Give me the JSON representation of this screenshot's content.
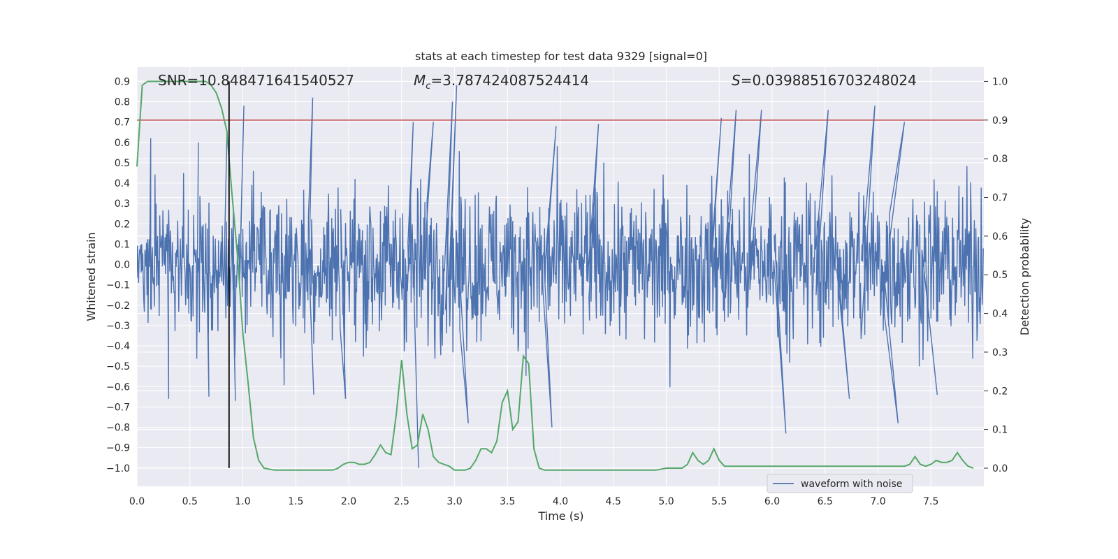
{
  "chart_data": {
    "type": "line",
    "title": "stats at each timestep for test data 9329 [signal=0]",
    "xlabel": "Time (s)",
    "ylabel": "Whitened strain",
    "y2label": "Detection probability",
    "xlim": [
      0.0,
      8.0
    ],
    "ylim": [
      -1.09,
      0.97
    ],
    "y2lim": [
      -0.047,
      1.037
    ],
    "xticks": [
      "0.0",
      "0.5",
      "1.0",
      "1.5",
      "2.0",
      "2.5",
      "3.0",
      "3.5",
      "4.0",
      "4.5",
      "5.0",
      "5.5",
      "6.0",
      "6.5",
      "7.0",
      "7.5"
    ],
    "yticks": [
      "0.9",
      "0.8",
      "0.7",
      "0.6",
      "0.5",
      "0.4",
      "0.3",
      "0.2",
      "0.1",
      "0.0",
      "−0.1",
      "−0.2",
      "−0.3",
      "−0.4",
      "−0.5",
      "−0.6",
      "−0.7",
      "−0.8",
      "−0.9",
      "−1.0"
    ],
    "y2ticks": [
      "1.0",
      "0.9",
      "0.8",
      "0.7",
      "0.6",
      "0.5",
      "0.4",
      "0.3",
      "0.2",
      "0.1",
      "0.0"
    ],
    "stats": {
      "snr_label": "SNR=10.848471641540527",
      "mc_symbol": "M",
      "mc_sub": "c",
      "mc_value": "=3.787424087524414",
      "s_symbol": "S",
      "s_value": "=0.03988516703248024"
    },
    "threshold": 0.9,
    "marker_time": 0.87,
    "legend": [
      "waveform with noise"
    ],
    "waveform_peaks": [
      {
        "t": 0.13,
        "v": 0.62
      },
      {
        "t": 0.58,
        "v": 0.6
      },
      {
        "t": 0.85,
        "v": 0.64
      },
      {
        "t": 1.01,
        "v": 0.78
      },
      {
        "t": 1.66,
        "v": 0.82
      },
      {
        "t": 2.61,
        "v": 0.7
      },
      {
        "t": 2.8,
        "v": 0.7
      },
      {
        "t": 2.98,
        "v": 0.8
      },
      {
        "t": 3.02,
        "v": 0.88
      },
      {
        "t": 3.96,
        "v": 0.68
      },
      {
        "t": 4.36,
        "v": 0.69
      },
      {
        "t": 5.52,
        "v": 0.72
      },
      {
        "t": 5.66,
        "v": 0.76
      },
      {
        "t": 5.9,
        "v": 0.76
      },
      {
        "t": 6.53,
        "v": 0.76
      },
      {
        "t": 6.97,
        "v": 0.78
      },
      {
        "t": 7.25,
        "v": 0.7
      },
      {
        "t": 0.3,
        "v": -0.66
      },
      {
        "t": 0.68,
        "v": -0.65
      },
      {
        "t": 0.93,
        "v": -0.67
      },
      {
        "t": 1.67,
        "v": -0.64
      },
      {
        "t": 1.97,
        "v": -0.66
      },
      {
        "t": 2.66,
        "v": -1.0
      },
      {
        "t": 3.13,
        "v": -0.78
      },
      {
        "t": 3.92,
        "v": -0.8
      },
      {
        "t": 6.13,
        "v": -0.83
      },
      {
        "t": 6.73,
        "v": -0.66
      },
      {
        "t": 7.19,
        "v": -0.78
      },
      {
        "t": 7.56,
        "v": -0.64
      }
    ],
    "detection_probability": {
      "x": [
        0.0,
        0.05,
        0.1,
        0.15,
        0.2,
        0.3,
        0.4,
        0.5,
        0.6,
        0.65,
        0.7,
        0.75,
        0.8,
        0.85,
        0.87,
        0.9,
        0.95,
        1.0,
        1.05,
        1.1,
        1.15,
        1.2,
        1.3,
        1.5,
        1.7,
        1.85,
        1.9,
        1.95,
        2.0,
        2.05,
        2.1,
        2.15,
        2.2,
        2.25,
        2.3,
        2.35,
        2.4,
        2.45,
        2.5,
        2.55,
        2.6,
        2.65,
        2.7,
        2.75,
        2.8,
        2.85,
        2.9,
        2.95,
        3.0,
        3.05,
        3.1,
        3.15,
        3.2,
        3.25,
        3.3,
        3.35,
        3.4,
        3.45,
        3.5,
        3.55,
        3.6,
        3.65,
        3.7,
        3.75,
        3.8,
        3.85,
        3.9,
        3.95,
        4.0,
        4.05,
        4.1,
        4.15,
        4.2,
        4.3,
        4.5,
        4.7,
        4.9,
        5.0,
        5.1,
        5.15,
        5.2,
        5.25,
        5.3,
        5.35,
        5.4,
        5.45,
        5.5,
        5.55,
        5.6,
        5.65,
        5.7,
        5.75,
        5.8,
        5.9,
        6.0,
        6.2,
        6.35,
        6.5,
        6.7,
        6.9,
        7.0,
        7.1,
        7.15,
        7.2,
        7.25,
        7.3,
        7.35,
        7.4,
        7.45,
        7.5,
        7.55,
        7.6,
        7.65,
        7.7,
        7.75,
        7.8,
        7.85,
        7.9
      ],
      "y": [
        0.78,
        0.99,
        1.0,
        1.0,
        1.0,
        1.0,
        1.0,
        1.0,
        1.0,
        1.0,
        0.99,
        0.97,
        0.93,
        0.87,
        0.8,
        0.7,
        0.55,
        0.35,
        0.22,
        0.08,
        0.02,
        0.0,
        -0.005,
        -0.005,
        -0.005,
        -0.005,
        0.0,
        0.01,
        0.015,
        0.015,
        0.01,
        0.01,
        0.015,
        0.035,
        0.06,
        0.04,
        0.035,
        0.14,
        0.28,
        0.14,
        0.05,
        0.06,
        0.14,
        0.1,
        0.03,
        0.015,
        0.01,
        0.005,
        -0.005,
        -0.005,
        -0.005,
        0.0,
        0.02,
        0.05,
        0.05,
        0.04,
        0.07,
        0.17,
        0.2,
        0.1,
        0.12,
        0.29,
        0.27,
        0.05,
        0.0,
        -0.005,
        -0.005,
        -0.005,
        -0.005,
        -0.005,
        -0.005,
        -0.005,
        -0.005,
        -0.005,
        -0.005,
        -0.005,
        -0.005,
        0.0,
        0.0,
        0.0,
        0.01,
        0.04,
        0.02,
        0.01,
        0.02,
        0.05,
        0.02,
        0.005,
        0.005,
        0.005,
        0.005,
        0.005,
        0.005,
        0.005,
        0.005,
        0.005,
        0.005,
        0.005,
        0.005,
        0.005,
        0.005,
        0.005,
        0.005,
        0.005,
        0.005,
        0.01,
        0.03,
        0.01,
        0.005,
        0.01,
        0.02,
        0.015,
        0.015,
        0.02,
        0.04,
        0.02,
        0.005,
        0.0
      ]
    },
    "colors": {
      "background": "#eaeaf2",
      "grid": "#ffffff",
      "waveform": "#4c72b0",
      "probability": "#55a868",
      "threshold": "#c44e52",
      "marker": "#000000",
      "text": "#262626"
    }
  }
}
